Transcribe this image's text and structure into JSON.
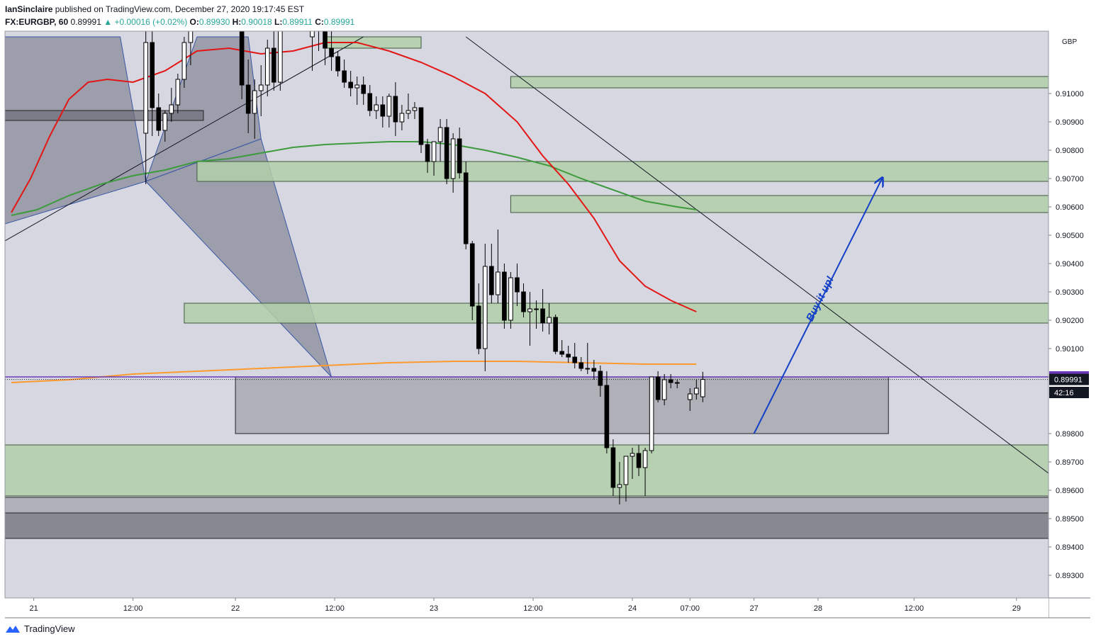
{
  "header": {
    "author": "IanSinclaire",
    "published_text": "published on TradingView.com, December 27, 2020 19:17:45 EST",
    "symbol": "FX:EURGBP, 60",
    "last": "0.89991",
    "change": "+0.00016 (+0.02%)",
    "open_label": "O:",
    "open": "0.89930",
    "high_label": "H:",
    "high": "0.90018",
    "low_label": "L:",
    "low": "0.89911",
    "close_label": "C:",
    "close": "0.89991"
  },
  "footer": {
    "brand": "TradingView",
    "logo_icon": "tradingview-logo-icon"
  },
  "chart_data": {
    "type": "candlestick",
    "currency": "GBP",
    "y_range": [
      0.8922,
      0.9122
    ],
    "x_range": [
      0,
      163
    ],
    "y_ticks": [
      "0.91000",
      "0.90900",
      "0.90800",
      "0.90700",
      "0.90600",
      "0.90500",
      "0.90400",
      "0.90300",
      "0.90200",
      "0.90100",
      "0.90000",
      "0.89800",
      "0.89700",
      "0.89600",
      "0.89500",
      "0.89400",
      "0.89300"
    ],
    "x_ticks": [
      {
        "i": 4.5,
        "label": "21"
      },
      {
        "i": 20,
        "label": "12:00"
      },
      {
        "i": 36,
        "label": "22"
      },
      {
        "i": 51.5,
        "label": "12:00"
      },
      {
        "i": 67,
        "label": "23"
      },
      {
        "i": 82.5,
        "label": "12:00"
      },
      {
        "i": 98,
        "label": "24"
      },
      {
        "i": 107,
        "label": "07:00"
      },
      {
        "i": 117,
        "label": "27"
      },
      {
        "i": 127,
        "label": "28"
      },
      {
        "i": 142,
        "label": "12:00"
      },
      {
        "i": 158,
        "label": "29"
      }
    ],
    "price_tags": [
      {
        "label": "0.90000",
        "value": 0.9,
        "color": "#673ab7"
      },
      {
        "label": "0.89991",
        "value": 0.89991,
        "color": "#131722"
      },
      {
        "label": "42:16",
        "value": 0.89945,
        "color": "#131722"
      }
    ],
    "colors": {
      "red_ma": "#e31515",
      "green_ma": "#3d9a3d",
      "orange_ma": "#ff9a2e",
      "level": "#673ab7",
      "arrow": "#1440c8",
      "zone_fill": "#b3cfa9",
      "zone_stroke": "#3e5a3e",
      "gray_zone": "#8f8f97",
      "pattern_fill": "#7d808d"
    },
    "annotation": "Buy it up!",
    "candles": [
      [
        22.0,
        0.9086,
        0.9122,
        0.9068,
        0.9118
      ],
      [
        23.0,
        0.9118,
        0.9126,
        0.9085,
        0.9095
      ],
      [
        24.0,
        0.9095,
        0.91,
        0.9085,
        0.9087
      ],
      [
        25.0,
        0.9087,
        0.9094,
        0.9083,
        0.9093
      ],
      [
        26.0,
        0.9093,
        0.9102,
        0.909,
        0.9096
      ],
      [
        27.0,
        0.9096,
        0.9107,
        0.9093,
        0.9105
      ],
      [
        28.0,
        0.9105,
        0.912,
        0.9102,
        0.9118
      ],
      [
        29.0,
        0.9118,
        0.9125,
        0.911,
        0.9123
      ],
      [
        37.0,
        0.9122,
        0.9126,
        0.9098,
        0.9103
      ],
      [
        38.0,
        0.9103,
        0.9112,
        0.9086,
        0.9093
      ],
      [
        39.0,
        0.9093,
        0.9105,
        0.9084,
        0.9101
      ],
      [
        40.0,
        0.9101,
        0.911,
        0.9092,
        0.9103
      ],
      [
        41.0,
        0.9103,
        0.9119,
        0.9099,
        0.9116
      ],
      [
        42.0,
        0.9116,
        0.9123,
        0.9101,
        0.9104
      ],
      [
        43.0,
        0.9104,
        0.9125,
        0.9101,
        0.9122
      ],
      [
        48.0,
        0.912,
        0.9126,
        0.9108,
        0.9124
      ],
      [
        49.0,
        0.9124,
        0.9126,
        0.9115,
        0.9123
      ],
      [
        50.0,
        0.9123,
        0.9125,
        0.911,
        0.9116
      ],
      [
        51.0,
        0.9116,
        0.9122,
        0.9108,
        0.9113
      ],
      [
        52.0,
        0.9113,
        0.9115,
        0.9106,
        0.9108
      ],
      [
        53.0,
        0.9108,
        0.9112,
        0.9102,
        0.9104
      ],
      [
        54.0,
        0.9104,
        0.9108,
        0.9099,
        0.9102
      ],
      [
        55.0,
        0.9102,
        0.9106,
        0.9096,
        0.9103
      ],
      [
        56.0,
        0.9103,
        0.9106,
        0.9096,
        0.91
      ],
      [
        57.0,
        0.91,
        0.9103,
        0.9092,
        0.9094
      ],
      [
        58.0,
        0.9094,
        0.9099,
        0.9091,
        0.9096
      ],
      [
        59.0,
        0.9096,
        0.9099,
        0.9088,
        0.9092
      ],
      [
        60.0,
        0.9092,
        0.91,
        0.9088,
        0.9099
      ],
      [
        61.0,
        0.9099,
        0.9104,
        0.9085,
        0.909
      ],
      [
        62.0,
        0.909,
        0.9096,
        0.9087,
        0.9093
      ],
      [
        63.0,
        0.9093,
        0.91,
        0.9091,
        0.9094
      ],
      [
        64.0,
        0.9094,
        0.9097,
        0.9091,
        0.9095
      ],
      [
        65.0,
        0.9095,
        0.9095,
        0.9079,
        0.9082
      ],
      [
        66.0,
        0.9082,
        0.9084,
        0.9072,
        0.9076
      ],
      [
        67.0,
        0.9076,
        0.9083,
        0.9071,
        0.9083
      ],
      [
        68.0,
        0.9083,
        0.9091,
        0.9076,
        0.9088
      ],
      [
        69.0,
        0.9088,
        0.9091,
        0.9068,
        0.907
      ],
      [
        70.0,
        0.907,
        0.9086,
        0.9065,
        0.9084
      ],
      [
        71.0,
        0.9084,
        0.9088,
        0.907,
        0.9072
      ],
      [
        72.0,
        0.9072,
        0.9076,
        0.9045,
        0.9047
      ],
      [
        73.0,
        0.9047,
        0.9048,
        0.902,
        0.9025
      ],
      [
        74.0,
        0.9025,
        0.9033,
        0.9008,
        0.901
      ],
      [
        75.0,
        0.901,
        0.9047,
        0.9002,
        0.9039
      ],
      [
        76.0,
        0.9039,
        0.9047,
        0.9026,
        0.9029
      ],
      [
        77.0,
        0.9029,
        0.9052,
        0.9026,
        0.9037
      ],
      [
        78.0,
        0.9037,
        0.904,
        0.9017,
        0.902
      ],
      [
        79.0,
        0.902,
        0.9037,
        0.9017,
        0.9035
      ],
      [
        80.0,
        0.9035,
        0.904,
        0.9025,
        0.903
      ],
      [
        81.0,
        0.903,
        0.9033,
        0.9021,
        0.9023
      ],
      [
        82.0,
        0.9023,
        0.903,
        0.9011,
        0.9024
      ],
      [
        83.0,
        0.9024,
        0.9027,
        0.9017,
        0.9024
      ],
      [
        84.0,
        0.9024,
        0.9031,
        0.9016,
        0.9019
      ],
      [
        85.0,
        0.9019,
        0.9026,
        0.9015,
        0.9021
      ],
      [
        86.0,
        0.9021,
        0.9022,
        0.9008,
        0.9009
      ],
      [
        87.0,
        0.9009,
        0.9013,
        0.9007,
        0.9008
      ],
      [
        88.0,
        0.9008,
        0.9011,
        0.9005,
        0.9007
      ],
      [
        89.0,
        0.9007,
        0.9012,
        0.9003,
        0.9005
      ],
      [
        90.0,
        0.9005,
        0.9007,
        0.9002,
        0.9003
      ],
      [
        91.0,
        0.9003,
        0.9012,
        0.9001,
        0.9003
      ],
      [
        92.0,
        0.9003,
        0.9006,
        0.8999,
        0.9002
      ],
      [
        93.0,
        0.9002,
        0.9004,
        0.8993,
        0.8997
      ],
      [
        94.0,
        0.8997,
        0.9002,
        0.8973,
        0.8975
      ],
      [
        95.0,
        0.8975,
        0.8978,
        0.8958,
        0.8961
      ],
      [
        96.0,
        0.8961,
        0.897,
        0.8955,
        0.8962
      ],
      [
        97.0,
        0.8962,
        0.8971,
        0.8956,
        0.8972
      ],
      [
        98.0,
        0.8972,
        0.8975,
        0.8964,
        0.8973
      ],
      [
        99.0,
        0.8973,
        0.8976,
        0.8965,
        0.8968
      ],
      [
        100.0,
        0.8968,
        0.8975,
        0.8958,
        0.8974
      ],
      [
        101.0,
        0.8974,
        0.9,
        0.8973,
        0.9
      ],
      [
        102.0,
        0.9,
        0.9002,
        0.8991,
        0.8992
      ],
      [
        103.0,
        0.8992,
        0.9001,
        0.899,
        0.8999
      ],
      [
        104.0,
        0.8999,
        0.9001,
        0.8996,
        0.8998
      ],
      [
        105.0,
        0.8998,
        0.8999,
        0.8996,
        0.8998
      ],
      [
        107.0,
        0.8992,
        0.8996,
        0.8988,
        0.8994
      ],
      [
        108.0,
        0.8994,
        0.8999,
        0.8992,
        0.8996
      ],
      [
        109.0,
        0.8993,
        0.90018,
        0.89911,
        0.89991
      ]
    ],
    "red_ma": [
      [
        1,
        0.9058
      ],
      [
        4,
        0.907
      ],
      [
        7,
        0.9085
      ],
      [
        10,
        0.9098
      ],
      [
        13,
        0.9104
      ],
      [
        16,
        0.9105
      ],
      [
        20,
        0.9104
      ],
      [
        25,
        0.9108
      ],
      [
        30,
        0.9115
      ],
      [
        35,
        0.9116
      ],
      [
        40,
        0.9114
      ],
      [
        45,
        0.9115
      ],
      [
        50,
        0.9118
      ],
      [
        55,
        0.9118
      ],
      [
        60,
        0.9115
      ],
      [
        65,
        0.9111
      ],
      [
        70,
        0.9106
      ],
      [
        75,
        0.91
      ],
      [
        80,
        0.909
      ],
      [
        84,
        0.9078
      ],
      [
        88,
        0.9068
      ],
      [
        92,
        0.9056
      ],
      [
        96,
        0.9041
      ],
      [
        100,
        0.9032
      ],
      [
        104,
        0.9027
      ],
      [
        108,
        0.9023
      ]
    ],
    "green_ma": [
      [
        1,
        0.9057
      ],
      [
        5,
        0.9059
      ],
      [
        10,
        0.9064
      ],
      [
        15,
        0.9068
      ],
      [
        20,
        0.9071
      ],
      [
        25,
        0.9073
      ],
      [
        30,
        0.9076
      ],
      [
        35,
        0.9077
      ],
      [
        40,
        0.9079
      ],
      [
        45,
        0.9081
      ],
      [
        50,
        0.9082
      ],
      [
        55,
        0.90825
      ],
      [
        60,
        0.9083
      ],
      [
        65,
        0.9083
      ],
      [
        70,
        0.9082
      ],
      [
        75,
        0.908
      ],
      [
        80,
        0.90775
      ],
      [
        85,
        0.90745
      ],
      [
        90,
        0.907
      ],
      [
        95,
        0.9066
      ],
      [
        100,
        0.9062
      ],
      [
        105,
        0.906
      ],
      [
        108,
        0.9059
      ]
    ],
    "orange_ma": [
      [
        1,
        0.8998
      ],
      [
        10,
        0.8999
      ],
      [
        20,
        0.9001
      ],
      [
        30,
        0.9002
      ],
      [
        40,
        0.9003
      ],
      [
        50,
        0.9004
      ],
      [
        60,
        0.9005
      ],
      [
        70,
        0.90055
      ],
      [
        80,
        0.90055
      ],
      [
        90,
        0.9005
      ],
      [
        100,
        0.90045
      ],
      [
        108,
        0.90045
      ]
    ],
    "zones": [
      {
        "x0": 50,
        "x1": 65,
        "y0": 0.9116,
        "y1": 0.912
      },
      {
        "x0": 79,
        "x1": 163,
        "y0": 0.9106,
        "y1": 0.9102
      },
      {
        "x0": 30,
        "x1": 163,
        "y0": 0.9076,
        "y1": 0.9069
      },
      {
        "x0": 79,
        "x1": 163,
        "y0": 0.9064,
        "y1": 0.9058
      },
      {
        "x0": 28,
        "x1": 163,
        "y0": 0.9026,
        "y1": 0.9019
      },
      {
        "x0": 0,
        "x1": 163,
        "y0": 0.8976,
        "y1": 0.8958
      }
    ],
    "gray_zones": [
      {
        "x0": 36,
        "x1": 138,
        "y0": 0.9,
        "y1": 0.898,
        "fill": "#8f8f97",
        "opacity": 0.55
      },
      {
        "x0": 0,
        "x1": 163,
        "y0": 0.89575,
        "y1": 0.8952,
        "fill": "#8f8f97",
        "opacity": 0.55
      },
      {
        "x0": 0,
        "x1": 163,
        "y0": 0.8952,
        "y1": 0.8943,
        "fill": "#6e6e78",
        "opacity": 0.75
      },
      {
        "x0": 0,
        "x1": 31,
        "y0": 0.9094,
        "y1": 0.90905,
        "fill": "#6e6e78",
        "opacity": 0.7
      }
    ],
    "pattern": [
      {
        "points": [
          [
            0,
            0.9054
          ],
          [
            22,
            0.9069
          ],
          [
            18,
            0.912
          ],
          [
            0,
            0.912
          ]
        ]
      },
      {
        "points": [
          [
            22,
            0.9069
          ],
          [
            40,
            0.9084
          ],
          [
            38,
            0.912
          ],
          [
            30,
            0.912
          ]
        ]
      },
      {
        "points": [
          [
            22,
            0.9069
          ],
          [
            51,
            0.9
          ],
          [
            40,
            0.9084
          ]
        ]
      }
    ],
    "trendlines": [
      {
        "x0": 0,
        "y0": 0.9048,
        "x1": 56,
        "y1": 0.912,
        "color": "#131722"
      },
      {
        "x0": 72,
        "y0": 0.912,
        "x1": 163,
        "y1": 0.8966,
        "color": "#131722"
      }
    ],
    "arrow": {
      "x0": 117,
      "y0": 0.898,
      "x1": 137,
      "y1": 0.907
    },
    "level": 0.9,
    "last_price": 0.89991
  }
}
